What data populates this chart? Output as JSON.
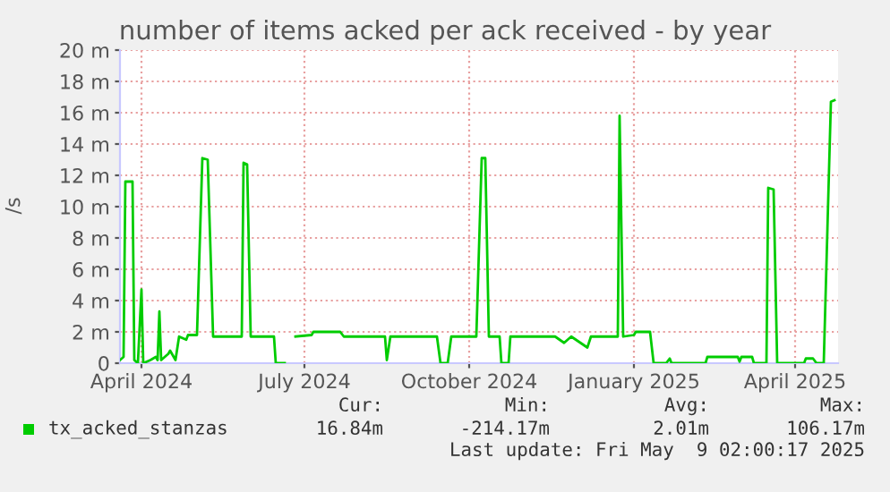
{
  "chart_data": {
    "type": "line",
    "title": "number of items acked per ack received - by year",
    "ylabel": "/s",
    "x": [
      "2024-03-20",
      "2024-03-22",
      "2024-03-23",
      "2024-03-27",
      "2024-03-28",
      "2024-03-30",
      "2024-04-01",
      "2024-04-02",
      "2024-04-06",
      "2024-04-09",
      "2024-04-10",
      "2024-04-11",
      "2024-04-12",
      "2024-04-16",
      "2024-04-17",
      "2024-04-20",
      "2024-04-22",
      "2024-04-26",
      "2024-04-27",
      "2024-05-02",
      "2024-05-05",
      "2024-05-08",
      "2024-05-11",
      "2024-05-27",
      "2024-05-28",
      "2024-05-30",
      "2024-06-01",
      "2024-06-14",
      "2024-06-15",
      "2024-06-20",
      "2024-06-23",
      "2024-06-26",
      "2024-07-05",
      "2024-07-06",
      "2024-07-21",
      "2024-07-23",
      "2024-08-15",
      "2024-08-16",
      "2024-08-18",
      "2024-09-13",
      "2024-09-15",
      "2024-09-19",
      "2024-09-21",
      "2024-10-05",
      "2024-10-08",
      "2024-10-10",
      "2024-10-12",
      "2024-10-18",
      "2024-10-19",
      "2024-10-23",
      "2024-10-24",
      "2024-11-18",
      "2024-11-23",
      "2024-11-27",
      "2024-12-06",
      "2024-12-08",
      "2024-12-23",
      "2024-12-24",
      "2024-12-26",
      "2025-01-01",
      "2025-01-02",
      "2025-01-10",
      "2025-01-12",
      "2025-01-19",
      "2025-01-21",
      "2025-01-22",
      "2025-02-10",
      "2025-02-11",
      "2025-02-28",
      "2025-03-01",
      "2025-03-02",
      "2025-03-08",
      "2025-03-09",
      "2025-03-16",
      "2025-03-17",
      "2025-03-20",
      "2025-03-22",
      "2025-04-06",
      "2025-04-07",
      "2025-04-11",
      "2025-04-13",
      "2025-04-17",
      "2025-04-21",
      "2025-04-23"
    ],
    "series": [
      {
        "name": "tx_acked_stanzas",
        "color": "#00cc00",
        "values": [
          0.2,
          0.4,
          11.6,
          11.6,
          0.2,
          0,
          4.7,
          0,
          0.2,
          0.4,
          0.2,
          3.3,
          0.2,
          0.6,
          0.8,
          0.2,
          1.7,
          1.5,
          1.8,
          1.8,
          13.1,
          13.0,
          1.7,
          1.7,
          12.8,
          12.7,
          1.7,
          1.7,
          0,
          0,
          null,
          1.7,
          1.8,
          2.0,
          2.0,
          1.7,
          1.7,
          0.2,
          1.7,
          1.7,
          0,
          0,
          1.7,
          1.7,
          13.1,
          13.1,
          1.7,
          1.7,
          0,
          0,
          1.7,
          1.7,
          1.3,
          1.7,
          1.0,
          1.7,
          1.7,
          15.8,
          1.7,
          1.8,
          2.0,
          2.0,
          0,
          0,
          0.3,
          0,
          0,
          0.4,
          0.4,
          0.1,
          0.4,
          0.4,
          0,
          0,
          11.2,
          11.1,
          0,
          0,
          0.3,
          0.3,
          0,
          0,
          16.7,
          16.8
        ]
      }
    ],
    "xlim": [
      "2024-03-20",
      "2025-04-25"
    ],
    "xticks": [
      {
        "value": "2024-04-01",
        "label": "April 2024"
      },
      {
        "value": "2024-07-01",
        "label": "July 2024"
      },
      {
        "value": "2024-10-01",
        "label": "October 2024"
      },
      {
        "value": "2025-01-01",
        "label": "January 2025"
      },
      {
        "value": "2025-04-01",
        "label": "April 2025"
      }
    ],
    "ylim": [
      0,
      20
    ],
    "yticks": [
      0,
      {
        "value": 2,
        "label": "2 m"
      },
      {
        "value": 4,
        "label": "4 m"
      },
      {
        "value": 6,
        "label": "6 m"
      },
      {
        "value": 8,
        "label": "8 m"
      },
      {
        "value": 10,
        "label": "10 m"
      },
      {
        "value": 12,
        "label": "12 m"
      },
      {
        "value": 14,
        "label": "14 m"
      },
      {
        "value": 16,
        "label": "16 m"
      },
      {
        "value": 18,
        "label": "18 m"
      },
      {
        "value": 20,
        "label": "20 m"
      }
    ],
    "grid": true,
    "legend": "bottom",
    "line_style": "solid",
    "annotations": [
      "Cur:",
      "Min:",
      "Avg:",
      "Max:",
      "16.84m",
      "-214.17m",
      "2.01m",
      "106.17m",
      "Last update: Fri May  9 02:00:17 2025"
    ]
  }
}
